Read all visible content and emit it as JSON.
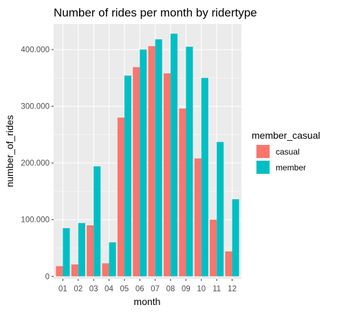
{
  "chart_data": {
    "type": "bar",
    "title": "Number of rides per month by ridertype",
    "xlabel": "month",
    "ylabel": "number_of_rides",
    "categories": [
      "01",
      "02",
      "03",
      "04",
      "05",
      "06",
      "07",
      "08",
      "09",
      "10",
      "11",
      "12"
    ],
    "series": [
      {
        "name": "casual",
        "color": "#F8766D",
        "values": [
          18000,
          21000,
          90000,
          23000,
          280000,
          369000,
          406000,
          358000,
          296000,
          208000,
          100000,
          44000
        ]
      },
      {
        "name": "member",
        "color": "#00BFC4",
        "values": [
          85000,
          94000,
          194000,
          60000,
          354000,
          400000,
          418000,
          428000,
          405000,
          350000,
          237000,
          136000
        ]
      }
    ],
    "ylim": [
      -4500,
      445000
    ],
    "yticks": [
      0,
      100000,
      200000,
      300000,
      400000
    ],
    "ytick_labels": [
      "0",
      "100.000",
      "200.000",
      "300.000",
      "400.000"
    ],
    "grid": true,
    "panel_background": "#EBEBEB",
    "legend": {
      "title": "member_casual",
      "placement": "right",
      "entries": [
        "casual",
        "member"
      ]
    }
  }
}
